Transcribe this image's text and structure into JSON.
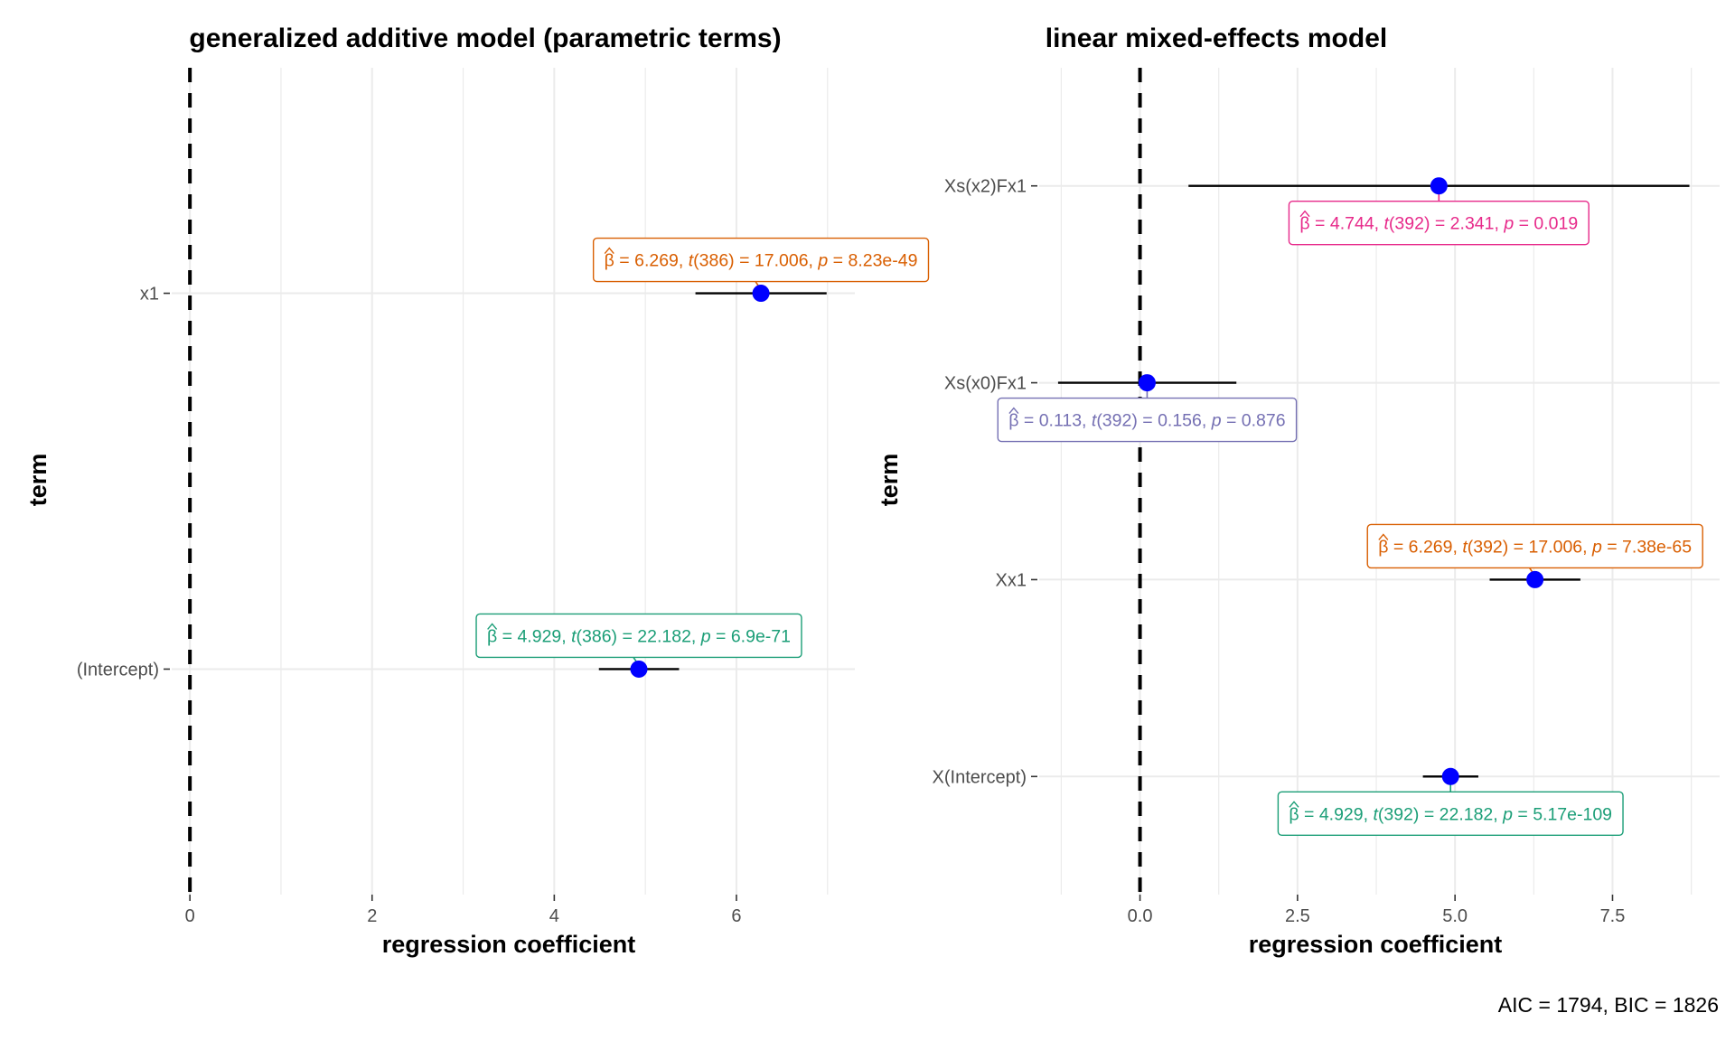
{
  "chart_data": [
    {
      "type": "scatter",
      "title": "generalized additive model (parametric terms)",
      "xlabel": "regression coefficient",
      "ylabel": "term",
      "xlim": [
        -0.2,
        7.3
      ],
      "xticks": [
        0,
        2,
        4,
        6
      ],
      "xtick_labels": [
        "0",
        "2",
        "4",
        "6"
      ],
      "categories": [
        "x1",
        "(Intercept)"
      ],
      "grid": true,
      "reference_line": 0,
      "points": [
        {
          "term": "x1",
          "estimate": 6.269,
          "ci": [
            5.55,
            6.99
          ],
          "label_beta": "= 6.269,",
          "label_df": "(386)",
          "label_t": "= 17.006,",
          "label_p": "= 8.23e-49",
          "color": "#d95f02",
          "label_side": "above"
        },
        {
          "term": "(Intercept)",
          "estimate": 4.929,
          "ci": [
            4.49,
            5.37
          ],
          "label_beta": "= 4.929,",
          "label_df": "(386)",
          "label_t": "= 22.182,",
          "label_p": "= 6.9e-71",
          "color": "#1b9e77",
          "label_side": "above"
        }
      ]
    },
    {
      "type": "scatter",
      "title": "linear mixed-effects model",
      "xlabel": "regression coefficient",
      "ylabel": "term",
      "xlim": [
        -1.6,
        9.2
      ],
      "xticks": [
        0,
        2.5,
        5,
        7.5
      ],
      "xtick_labels": [
        "0.0",
        "2.5",
        "5.0",
        "7.5"
      ],
      "categories": [
        "Xs(x2)Fx1",
        "Xs(x0)Fx1",
        "Xx1",
        "X(Intercept)"
      ],
      "grid": true,
      "reference_line": 0,
      "points": [
        {
          "term": "Xs(x2)Fx1",
          "estimate": 4.744,
          "ci": [
            0.77,
            8.72
          ],
          "label_beta": "= 4.744,",
          "label_df": "(392)",
          "label_t": "= 2.341,",
          "label_p": "= 0.019",
          "color": "#e7298a",
          "label_side": "below"
        },
        {
          "term": "Xs(x0)Fx1",
          "estimate": 0.113,
          "ci": [
            -1.3,
            1.53
          ],
          "label_beta": "= 0.113,",
          "label_df": "(392)",
          "label_t": "= 0.156,",
          "label_p": "= 0.876",
          "color": "#7570b3",
          "label_side": "below"
        },
        {
          "term": "Xx1",
          "estimate": 6.269,
          "ci": [
            5.55,
            6.99
          ],
          "label_beta": "= 6.269,",
          "label_df": "(392)",
          "label_t": "= 17.006,",
          "label_p": "= 7.38e-65",
          "color": "#d95f02",
          "label_side": "above"
        },
        {
          "term": "X(Intercept)",
          "estimate": 4.929,
          "ci": [
            4.49,
            5.37
          ],
          "label_beta": "= 4.929,",
          "label_df": "(392)",
          "label_t": "= 22.182,",
          "label_p": "= 5.17e-109",
          "color": "#1b9e77",
          "label_side": "below"
        }
      ]
    }
  ],
  "caption": "AIC = 1794, BIC = 1826",
  "beta_symbol": "β",
  "t_symbol": "t",
  "p_symbol": "p",
  "point_color": "#0000ff"
}
